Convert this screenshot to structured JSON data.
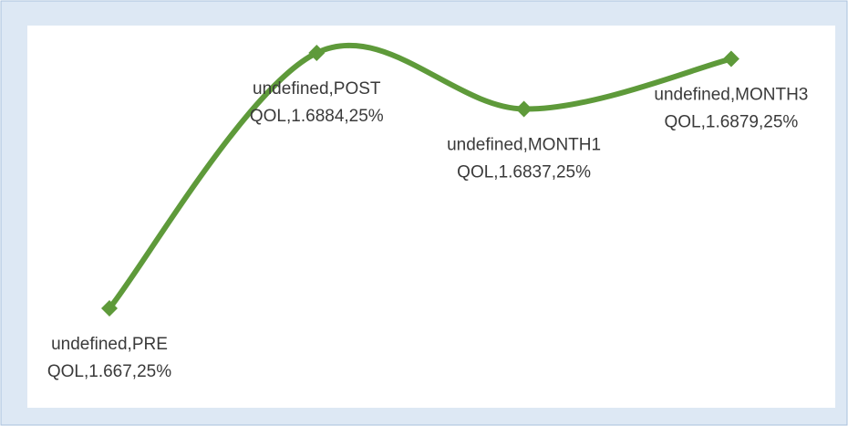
{
  "chart_data": {
    "type": "line",
    "color": "#5e9a3a",
    "values": [
      1.667,
      1.6884,
      1.6837,
      1.6879
    ],
    "value_labels": [
      [
        "undefined,PRE",
        "QOL,1.667,25%"
      ],
      [
        "undefined,POST",
        "QOL,1.6884,25%"
      ],
      [
        "undefined,MONTH1",
        "QOL,1.6837,25%"
      ],
      [
        "undefined,MONTH3",
        "QOL,1.6879,25%"
      ]
    ],
    "smooth": true
  }
}
